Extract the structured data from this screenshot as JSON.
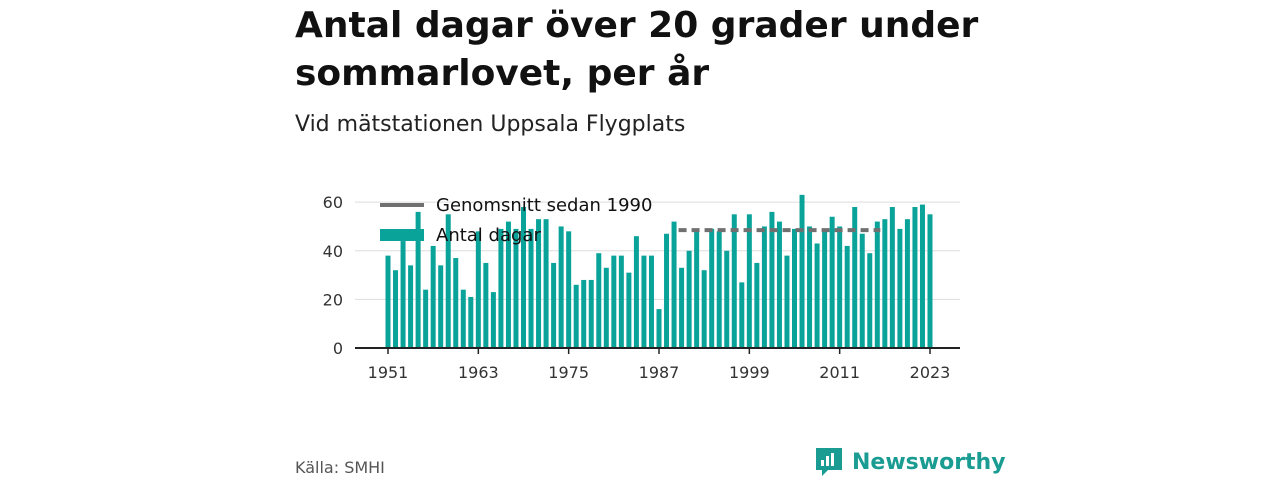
{
  "title": "Antal dagar över 20 grader under sommarlovet, per år",
  "subtitle": "Vid mätstationen Uppsala Flygplats",
  "source": "Källa: SMHI",
  "brand": "Newsworthy",
  "colors": {
    "bar": "#0aa39a",
    "average": "#707070",
    "grid": "#dddddd",
    "axis": "#222222",
    "brand": "#1a9c92"
  },
  "chart_data": {
    "type": "bar",
    "x": [
      1951,
      1952,
      1953,
      1954,
      1955,
      1956,
      1957,
      1958,
      1959,
      1960,
      1961,
      1962,
      1963,
      1964,
      1965,
      1966,
      1967,
      1968,
      1969,
      1970,
      1971,
      1972,
      1973,
      1974,
      1975,
      1976,
      1977,
      1978,
      1979,
      1980,
      1981,
      1982,
      1983,
      1984,
      1985,
      1986,
      1987,
      1988,
      1989,
      1990,
      1991,
      1992,
      1993,
      1994,
      1995,
      1996,
      1997,
      1998,
      1999,
      2000,
      2001,
      2002,
      2003,
      2004,
      2005,
      2006,
      2007,
      2008,
      2009,
      2010,
      2011,
      2012,
      2013,
      2014,
      2015,
      2016,
      2017,
      2018,
      2019,
      2020,
      2021,
      2022,
      2023
    ],
    "series": [
      {
        "name": "Antal dagar",
        "values": [
          38,
          32,
          44,
          34,
          56,
          24,
          42,
          34,
          55,
          37,
          24,
          21,
          48,
          35,
          23,
          49,
          52,
          49,
          58,
          49,
          53,
          53,
          35,
          50,
          48,
          26,
          28,
          28,
          39,
          33,
          38,
          38,
          31,
          46,
          38,
          38,
          16,
          47,
          52,
          33,
          40,
          49,
          32,
          49,
          48,
          40,
          55,
          27,
          55,
          35,
          50,
          56,
          52,
          38,
          49,
          63,
          50,
          43,
          48,
          54,
          50,
          42,
          58,
          47,
          39,
          52,
          53,
          58,
          49,
          53,
          58,
          59,
          55
        ]
      },
      {
        "name": "Genomsnitt sedan 1990",
        "from": 1990,
        "to": 2016,
        "value": 48.5
      }
    ],
    "x_ticks": [
      1951,
      1963,
      1975,
      1987,
      1999,
      2011,
      2023
    ],
    "y_ticks": [
      0,
      20,
      40,
      60
    ],
    "ylim": [
      0,
      65
    ],
    "grid": true,
    "legend": "top-left"
  }
}
